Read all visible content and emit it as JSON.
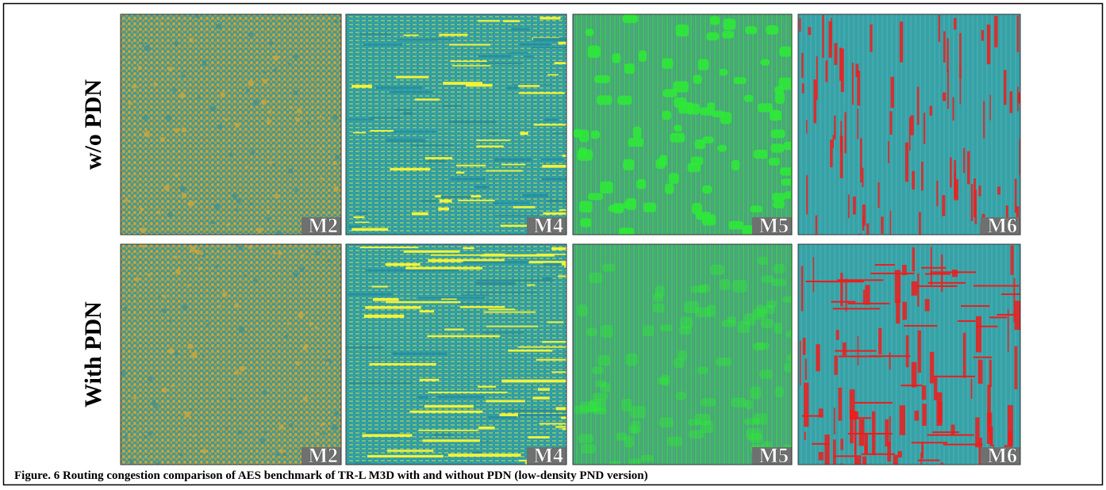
{
  "figure": {
    "rows": [
      {
        "label": "w/o PDN",
        "tiles": [
          "M2",
          "M4",
          "M5",
          "M6"
        ]
      },
      {
        "label": "With PDN",
        "tiles": [
          "M2",
          "M4",
          "M5",
          "M6"
        ]
      }
    ],
    "caption": "Figure. 6 Routing congestion comparison of AES benchmark of TR-L M3D with and without PDN (low-density PND version)"
  }
}
